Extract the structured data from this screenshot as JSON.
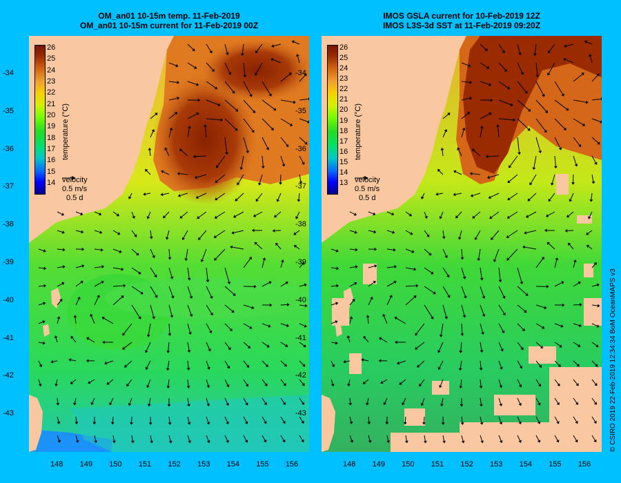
{
  "left_panel": {
    "title_line1": "OM_an01 10-15m temp. 11-Feb-2019",
    "title_line2": "OM_an01 10-15m current for 11-Feb-2019 00Z",
    "colorbar_labels": [
      "26",
      "25",
      "24",
      "23",
      "22",
      "21",
      "20",
      "19",
      "18",
      "17",
      "16",
      "15",
      "14"
    ]
  },
  "right_panel": {
    "title_line1": "IMOS GSLA current for 10-Feb-2019 12Z",
    "title_line2": "IMOS L3S-3d SST at 11-Feb-2019 09:20Z",
    "colorbar_labels": [
      "26",
      "25",
      "24",
      "23",
      "22",
      "21",
      "20",
      "19",
      "18",
      "17",
      "16",
      "15",
      "14",
      "13"
    ]
  },
  "colorbar_title": "temperature (°C)",
  "velocity_legend": {
    "title": "velocity",
    "speed": "0.5 m/s",
    "duration": "0.5 d"
  },
  "lat_ticks": [
    "-34",
    "-35",
    "-36",
    "-37",
    "-38",
    "-39",
    "-40",
    "-41",
    "-42",
    "-43"
  ],
  "lon_ticks": [
    "148",
    "149",
    "150",
    "151",
    "152",
    "153",
    "154",
    "155",
    "156"
  ],
  "credit": "© CSIRO 2019   22-Feb-2019 12:34:34 BoM OceanMAPS v3",
  "colors": {
    "frame": "#00bfff",
    "land": "#f9c8a0",
    "warm_core": "#9a2a00",
    "cool_water": "#22dd22"
  }
}
